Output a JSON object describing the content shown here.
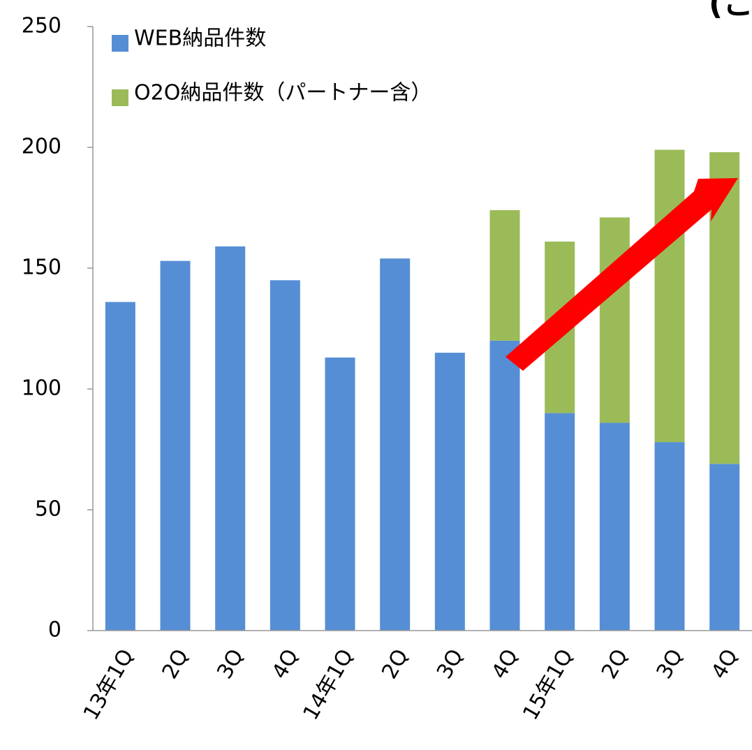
{
  "chart_data": {
    "type": "bar",
    "stacked": true,
    "annotation": "(こ",
    "categories": [
      "13年1Q",
      "2Q",
      "3Q",
      "4Q",
      "14年1Q",
      "2Q",
      "3Q",
      "4Q",
      "15年1Q",
      "2Q",
      "3Q",
      "4Q"
    ],
    "series": [
      {
        "name": "WEB納品件数",
        "color": "#558ed5",
        "values": [
          136,
          153,
          159,
          145,
          113,
          154,
          115,
          120,
          90,
          86,
          78,
          69
        ]
      },
      {
        "name": "O2O納品件数（パートナー含）",
        "color": "#9bbb59",
        "values": [
          null,
          null,
          null,
          null,
          null,
          null,
          null,
          54,
          71,
          85,
          121,
          129
        ]
      }
    ],
    "ylim": [
      0,
      250
    ],
    "yticks": [
      0,
      50,
      100,
      150,
      200,
      250
    ],
    "legend": "top-left"
  }
}
